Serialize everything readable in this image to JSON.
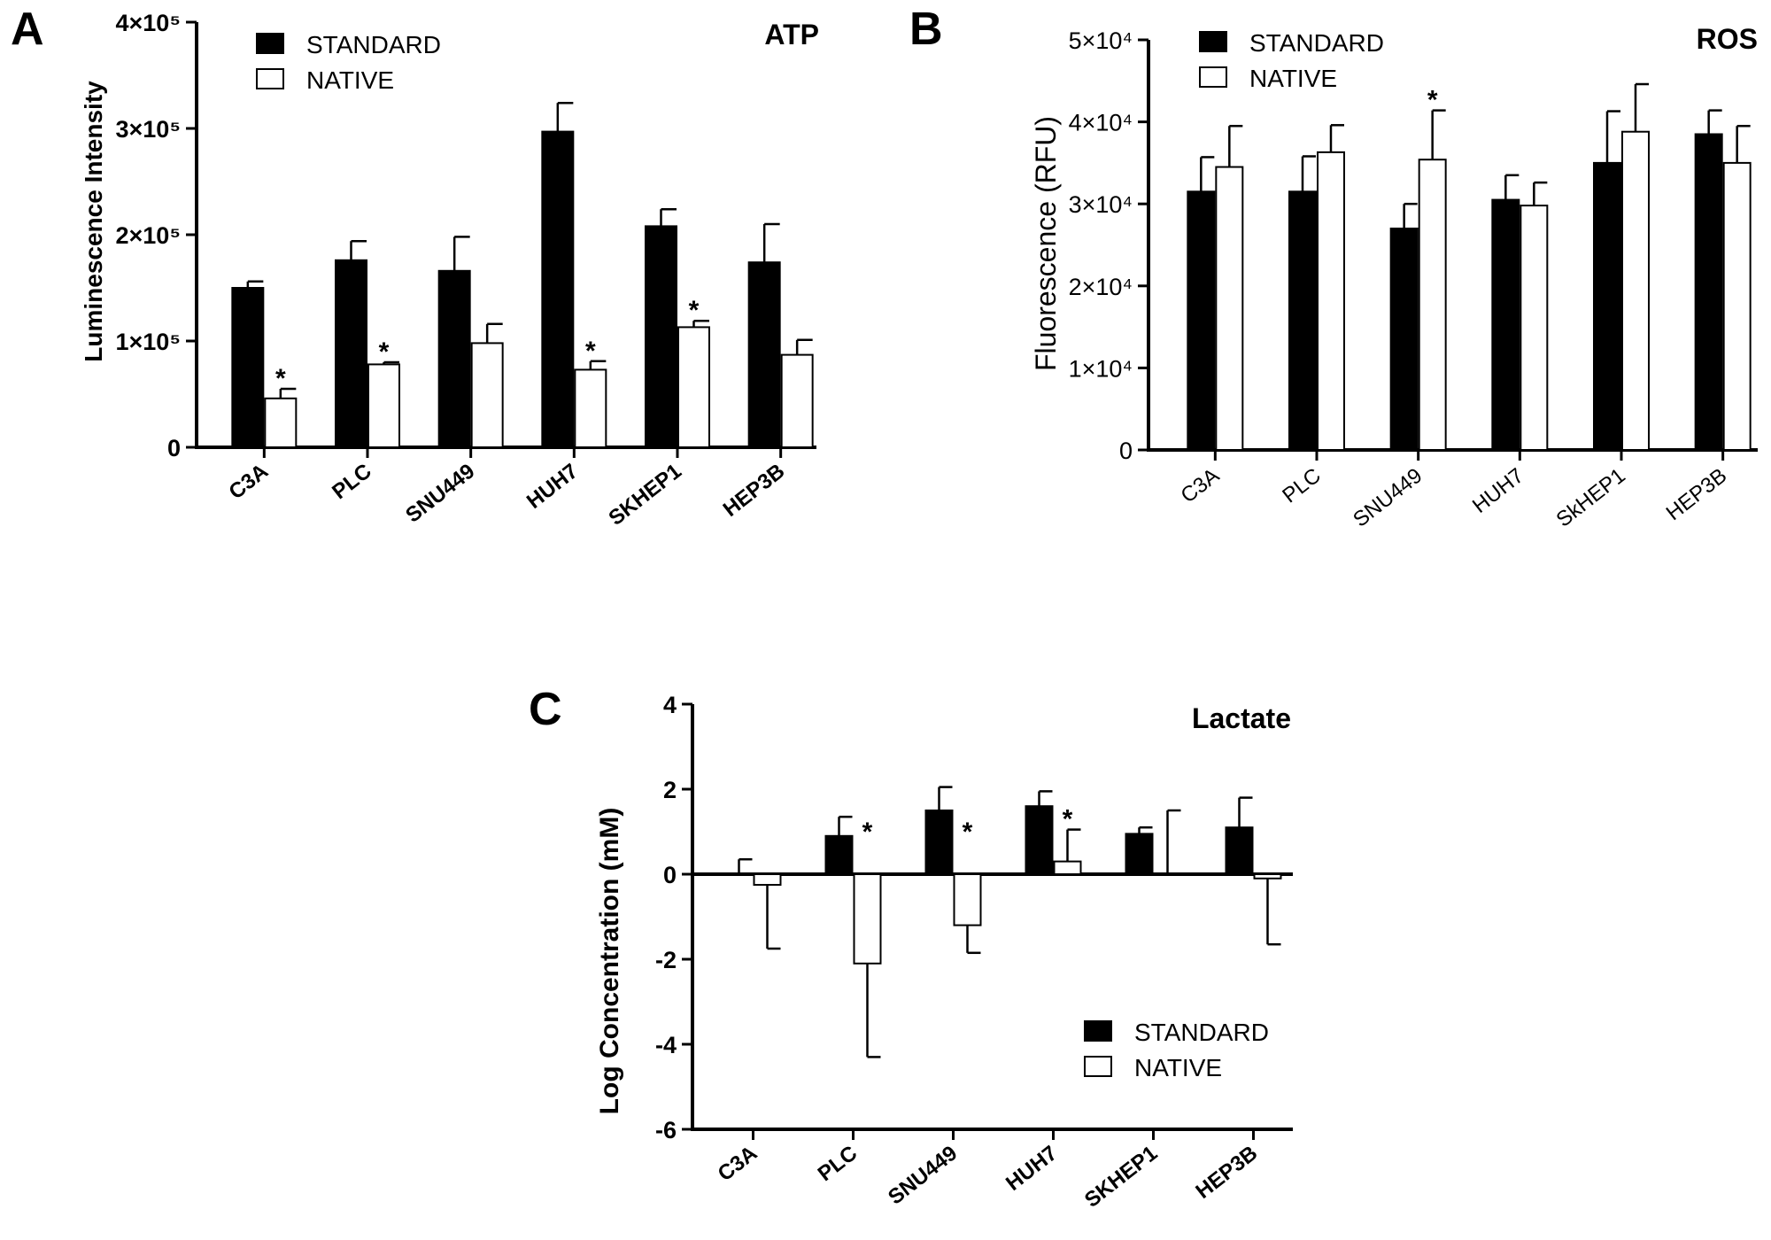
{
  "colors": {
    "standard": "#000000",
    "native": "#ffffff",
    "axis": "#000000"
  },
  "chart_data": [
    {
      "panel": "A",
      "type": "bar",
      "title": "ATP",
      "xlabel": "",
      "ylabel": "Luminescence Intensity",
      "ylim": [
        0,
        400000
      ],
      "y_ticks": [
        {
          "value": 0,
          "label": "0"
        },
        {
          "value": 100000,
          "label": "1×10⁵"
        },
        {
          "value": 200000,
          "label": "2×10⁵"
        },
        {
          "value": 300000,
          "label": "3×10⁵"
        },
        {
          "value": 400000,
          "label": "4×10⁵"
        }
      ],
      "categories": [
        "C3A",
        "PLC",
        "SNU449",
        "HUH7",
        "SKHEP1",
        "HEP3B"
      ],
      "series": [
        {
          "name": "STANDARD",
          "values": [
            150000,
            176000,
            166000,
            297000,
            208000,
            174000
          ],
          "errors": [
            6000,
            18000,
            32000,
            27000,
            16000,
            36000
          ]
        },
        {
          "name": "NATIVE",
          "values": [
            46000,
            78000,
            98000,
            73000,
            113000,
            87000
          ],
          "errors": [
            9000,
            2000,
            18000,
            8000,
            6000,
            14000
          ]
        }
      ],
      "significance": [
        "*",
        "*",
        "",
        "*",
        "*",
        ""
      ],
      "legend": "top-left"
    },
    {
      "panel": "B",
      "type": "bar",
      "title": "ROS",
      "xlabel": "",
      "ylabel": "Fluorescence (RFU)",
      "ylim": [
        0,
        50000
      ],
      "y_ticks": [
        {
          "value": 0,
          "label": "0"
        },
        {
          "value": 10000,
          "label": "1×10⁴"
        },
        {
          "value": 20000,
          "label": "2×10⁴"
        },
        {
          "value": 30000,
          "label": "3×10⁴"
        },
        {
          "value": 40000,
          "label": "4×10⁴"
        },
        {
          "value": 50000,
          "label": "5×10⁴"
        }
      ],
      "categories": [
        "C3A",
        "PLC",
        "SNU449",
        "HUH7",
        "SkHEP1",
        "HEP3B"
      ],
      "series": [
        {
          "name": "STANDARD",
          "values": [
            31500,
            31500,
            27000,
            30500,
            35000,
            38500
          ],
          "errors": [
            4200,
            4300,
            3000,
            3000,
            6300,
            2900
          ]
        },
        {
          "name": "NATIVE",
          "values": [
            34500,
            36300,
            35400,
            29800,
            38800,
            35000
          ],
          "errors": [
            5000,
            3300,
            6000,
            2800,
            5800,
            4500
          ]
        }
      ],
      "significance": [
        "",
        "",
        "*",
        "",
        "",
        ""
      ],
      "legend": "top-left"
    },
    {
      "panel": "C",
      "type": "bar",
      "title": "Lactate",
      "xlabel": "",
      "ylabel": "Log Concentration (mM)",
      "ylim": [
        -6,
        4
      ],
      "y_ticks": [
        {
          "value": -6,
          "label": "-6"
        },
        {
          "value": -4,
          "label": "-4"
        },
        {
          "value": -2,
          "label": "-2"
        },
        {
          "value": 0,
          "label": "0"
        },
        {
          "value": 2,
          "label": "2"
        },
        {
          "value": 4,
          "label": "4"
        }
      ],
      "categories": [
        "C3A",
        "PLC",
        "SNU449",
        "HUH7",
        "SKHEP1",
        "HEP3B"
      ],
      "series": [
        {
          "name": "STANDARD",
          "values": [
            0.0,
            0.9,
            1.5,
            1.6,
            0.95,
            1.1
          ],
          "errors": [
            0.35,
            0.45,
            0.55,
            0.35,
            0.15,
            0.7
          ]
        },
        {
          "name": "NATIVE",
          "values": [
            -0.25,
            -2.1,
            -1.2,
            0.3,
            0.0,
            -0.1
          ],
          "errors": [
            1.5,
            2.2,
            0.65,
            0.75,
            1.5,
            1.55
          ]
        }
      ],
      "significance": [
        "",
        "*",
        "*",
        "*",
        "",
        ""
      ],
      "legend": "bottom-right"
    }
  ]
}
